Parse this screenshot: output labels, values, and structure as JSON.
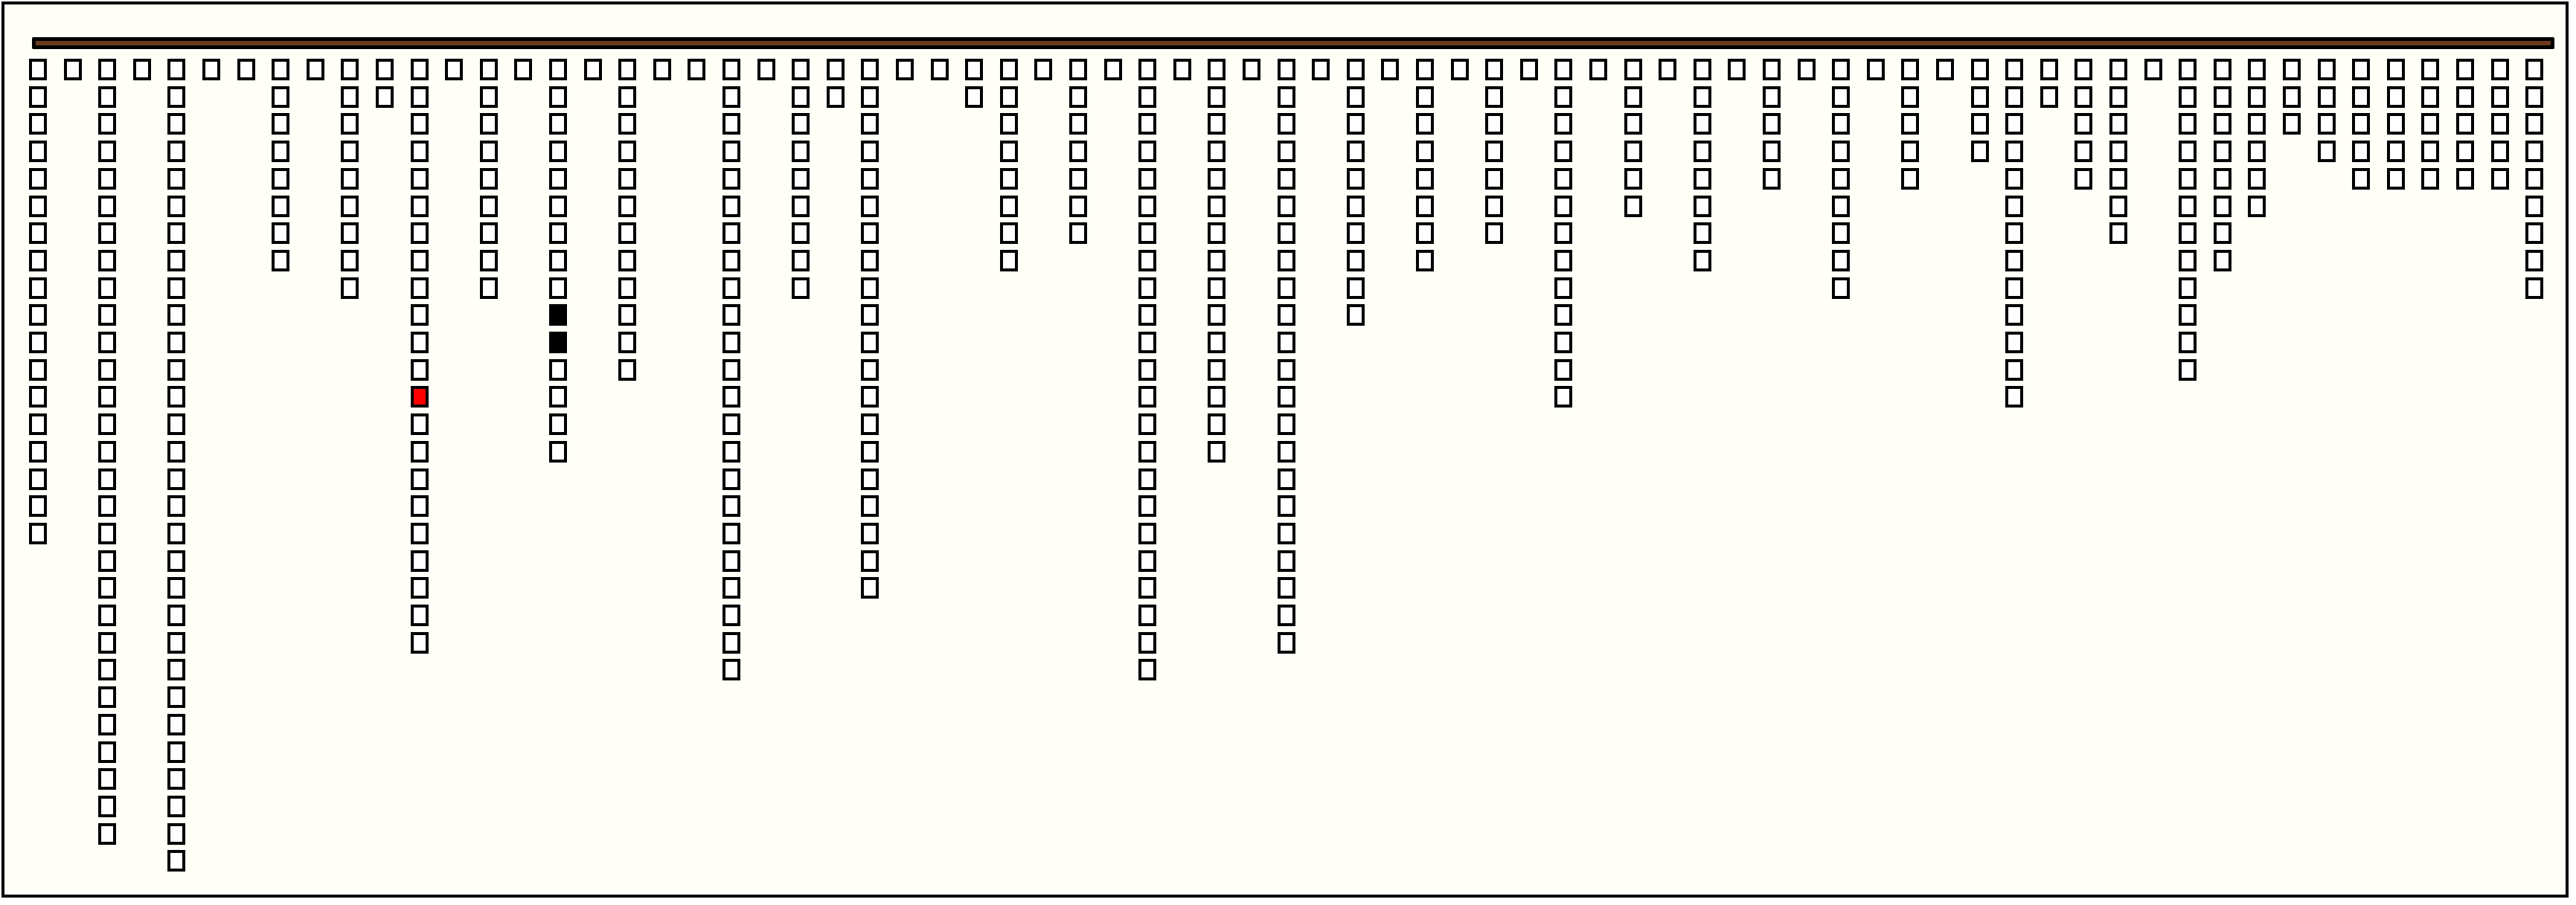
{
  "colors": {
    "background": "#fffff8",
    "bar": "#6b3a1f",
    "cell_default": "#ffffff",
    "cell_red": "#ff0000",
    "cell_black": "#000000"
  },
  "columns": [
    18,
    1,
    29,
    1,
    30,
    1,
    1,
    8,
    1,
    9,
    2,
    22,
    1,
    9,
    1,
    15,
    1,
    12,
    1,
    1,
    23,
    1,
    9,
    2,
    20,
    1,
    1,
    2,
    8,
    1,
    7,
    1,
    23,
    1,
    15,
    1,
    22,
    1,
    10,
    1,
    8,
    1,
    7,
    1,
    13,
    1,
    6,
    1,
    8,
    1,
    5,
    1,
    9,
    1,
    5,
    1,
    4,
    13,
    2,
    5,
    7,
    1,
    12,
    8,
    6,
    3,
    4,
    5,
    5,
    5,
    5,
    5,
    9
  ],
  "special_cells": [
    {
      "column": 12,
      "row": 13,
      "color": "red"
    },
    {
      "column": 16,
      "row": 10,
      "color": "black"
    },
    {
      "column": 16,
      "row": 11,
      "color": "black"
    }
  ]
}
